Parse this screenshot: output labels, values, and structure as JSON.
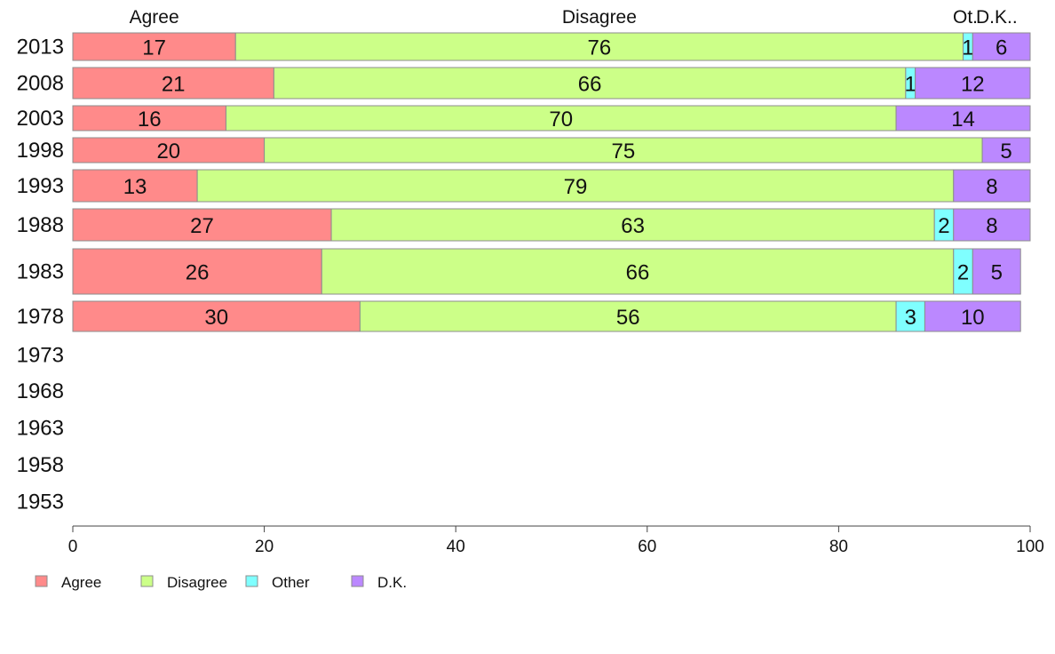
{
  "chart_data": {
    "type": "bar",
    "orientation": "horizontal",
    "stacked": true,
    "categories": [
      "2013",
      "2008",
      "2003",
      "1998",
      "1993",
      "1988",
      "1983",
      "1978",
      "1973",
      "1968",
      "1963",
      "1958",
      "1953"
    ],
    "series": [
      {
        "name": "Agree",
        "color": "#ff8a8a",
        "values": [
          17,
          21,
          16,
          20,
          13,
          27,
          26,
          30,
          null,
          null,
          null,
          null,
          null
        ]
      },
      {
        "name": "Disagree",
        "color": "#ccff88",
        "values": [
          76,
          66,
          70,
          75,
          79,
          63,
          66,
          56,
          null,
          null,
          null,
          null,
          null
        ]
      },
      {
        "name": "Other",
        "color": "#7fffff",
        "values": [
          1,
          1,
          0,
          0,
          0,
          2,
          2,
          3,
          null,
          null,
          null,
          null,
          null
        ]
      },
      {
        "name": "D.K.",
        "color": "#bb88ff",
        "values": [
          6,
          12,
          14,
          5,
          8,
          8,
          5,
          10,
          null,
          null,
          null,
          null,
          null
        ]
      }
    ],
    "column_headers": [
      "Agree",
      "Disagree",
      "Ot.",
      "D.K.."
    ],
    "xlim": [
      0,
      100
    ],
    "x_ticks": [
      0,
      20,
      40,
      60,
      80,
      100
    ],
    "legend_position": "bottom-left",
    "grid": false
  }
}
